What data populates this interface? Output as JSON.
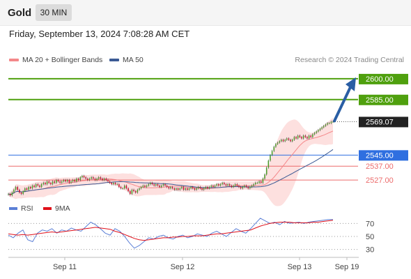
{
  "header": {
    "title": "Gold",
    "timeframe": "30 MIN"
  },
  "datetime": "Friday, September 13, 2024 7:08:28 AM CET",
  "legend": {
    "ma20": {
      "label": "MA 20 + Bollinger Bands",
      "color": "#f4888a"
    },
    "ma50": {
      "label": "MA 50",
      "color": "#3b5a94"
    },
    "credit": "Research © 2024 Trading Central"
  },
  "rsi_legend": {
    "rsi": {
      "label": "RSI",
      "color": "#5b7fd6"
    },
    "ma9": {
      "label": "9MA",
      "color": "#e0101a"
    }
  },
  "colors": {
    "resistance": "#4fa00e",
    "pivot": "#2f6fe0",
    "support": "#ec6b6b",
    "last": "#222222",
    "arrow": "#2a5ea4",
    "bullish": "#4c9a2a",
    "bearish": "#c8102e"
  },
  "chart_data": [
    {
      "type": "candlestick",
      "instrument": "Gold",
      "timeframe": "30 MIN",
      "ylim": [
        2514,
        2608
      ],
      "levels": [
        {
          "value": 2600.0,
          "label": "2600.00",
          "kind": "resistance"
        },
        {
          "value": 2585.0,
          "label": "2585.00",
          "kind": "resistance"
        },
        {
          "value": 2569.07,
          "label": "2569.07",
          "kind": "last"
        },
        {
          "value": 2545.0,
          "label": "2545.00",
          "kind": "pivot"
        },
        {
          "value": 2537.0,
          "label": "2537.00",
          "kind": "support"
        },
        {
          "value": 2527.0,
          "label": "2527.00",
          "kind": "support"
        }
      ],
      "x_ticks": [
        "Sep 11",
        "Sep 12",
        "Sep 13",
        "Sep 19"
      ],
      "close": [
        2517,
        2516,
        2518,
        2520,
        2522,
        2520,
        2518,
        2517,
        2519,
        2521,
        2520,
        2522,
        2521,
        2523,
        2522,
        2524,
        2523,
        2522,
        2524,
        2525,
        2524,
        2526,
        2525,
        2524,
        2526,
        2525,
        2527,
        2526,
        2525,
        2526,
        2527,
        2526,
        2527,
        2525,
        2526,
        2527,
        2526,
        2528,
        2527,
        2529,
        2530,
        2529,
        2528,
        2527,
        2528,
        2529,
        2528,
        2527,
        2528,
        2529,
        2528,
        2527,
        2528,
        2527,
        2526,
        2525,
        2524,
        2525,
        2524,
        2524,
        2522,
        2521,
        2521,
        2523,
        2521,
        2519,
        2517,
        2520,
        2519,
        2518,
        2520,
        2521,
        2522,
        2523,
        2522,
        2523,
        2524,
        2525,
        2524,
        2523,
        2524,
        2523,
        2522,
        2523,
        2524,
        2523,
        2522,
        2521,
        2522,
        2521,
        2520,
        2521,
        2520,
        2521,
        2522,
        2520,
        2521,
        2520,
        2521,
        2522,
        2521,
        2520,
        2521,
        2522,
        2521,
        2520,
        2521,
        2522,
        2521,
        2522,
        2523,
        2522,
        2523,
        2524,
        2523,
        2524,
        2525,
        2524,
        2523,
        2524,
        2523,
        2522,
        2523,
        2524,
        2523,
        2522,
        2521,
        2522,
        2523,
        2522,
        2521,
        2522,
        2523,
        2524,
        2525,
        2525,
        2526,
        2525,
        2528,
        2531,
        2536,
        2541,
        2545,
        2548,
        2551,
        2553,
        2554,
        2555,
        2556,
        2555,
        2556,
        2557,
        2556,
        2555,
        2556,
        2558,
        2557,
        2559,
        2558,
        2557,
        2559,
        2558,
        2557,
        2559,
        2558,
        2560,
        2561,
        2562,
        2563,
        2564,
        2565,
        2566,
        2567,
        2568,
        2568,
        2569,
        2569.07
      ],
      "series": [
        {
          "name": "MA 20 + Bollinger Bands",
          "start": 2520,
          "end": 2563
        },
        {
          "name": "MA 50",
          "start": 2517,
          "end": 2546
        }
      ],
      "forecast_target": 2600.0
    },
    {
      "type": "line",
      "title": "RSI",
      "ylim": [
        20,
        80
      ],
      "y_ticks": [
        70,
        50,
        30
      ],
      "series": [
        {
          "name": "RSI",
          "values": [
            52,
            48,
            55,
            60,
            45,
            42,
            55,
            60,
            58,
            62,
            55,
            60,
            58,
            63,
            60,
            58,
            65,
            72,
            68,
            62,
            55,
            52,
            62,
            58,
            50,
            40,
            32,
            36,
            42,
            48,
            46,
            50,
            52,
            48,
            46,
            50,
            52,
            48,
            50,
            54,
            52,
            50,
            55,
            58,
            54,
            50,
            56,
            62,
            58,
            55,
            62,
            70,
            78,
            74,
            70,
            72,
            68,
            73,
            70,
            71,
            72,
            70,
            72,
            73,
            74,
            75,
            76,
            76
          ]
        },
        {
          "name": "9MA",
          "values": [
            54,
            53,
            52,
            53,
            52,
            53,
            54,
            55,
            56,
            57,
            56,
            57,
            58,
            59,
            60,
            61,
            62,
            63,
            64,
            63,
            62,
            61,
            58,
            56,
            53,
            50,
            47,
            45,
            44,
            45,
            46,
            47,
            48,
            48,
            49,
            49,
            50,
            50,
            51,
            51,
            51,
            52,
            53,
            54,
            54,
            55,
            56,
            57,
            58,
            59,
            60,
            63,
            66,
            68,
            70,
            71,
            72,
            72,
            72,
            71,
            71,
            71,
            71,
            72,
            72,
            73,
            74,
            75
          ]
        }
      ]
    }
  ]
}
